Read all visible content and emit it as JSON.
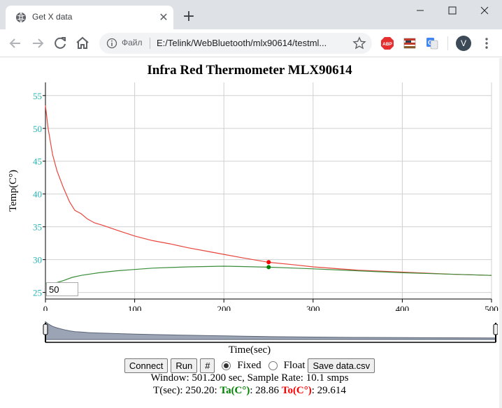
{
  "browser": {
    "tab_title": "Get X data",
    "close_tab_glyph": "✕",
    "new_tab_glyph": "+",
    "omnibox_label": "Файл",
    "url": "E:/Telink/WebBluetooth/mlx90614/testml...",
    "avatar_letter": "V",
    "extensions": [
      "abp-extension-icon",
      "flag-extension-icon",
      "translate-extension-icon"
    ]
  },
  "page": {
    "title": "Infra Red Thermometer MLX90614",
    "window_input_value": "50",
    "xlabel": "Time(sec)"
  },
  "controls": {
    "connect_label": "Connect",
    "run_label": "Run",
    "hash_label": "#",
    "fixed_label": "Fixed",
    "float_label": "Float",
    "save_label": "Save data.csv",
    "selected_mode": "Fixed"
  },
  "status": {
    "line1": "Window: 501.200 sec, Sample Rate: 10.1 smps",
    "t_text": "T(sec): 250.20: ",
    "ta_label": "Ta(C°)",
    "ta_value": ": 28.86 ",
    "to_label": "To(C°)",
    "to_value": ": 29.614"
  },
  "chart_data": {
    "type": "line",
    "ylabel": "Temp(C°)",
    "xlim": [
      0,
      500
    ],
    "ylim": [
      24,
      57
    ],
    "x_ticks": [
      0,
      100,
      200,
      300,
      400,
      500
    ],
    "y_ticks": [
      25,
      30,
      35,
      40,
      45,
      50,
      55
    ],
    "grid": true,
    "colors": {
      "to": "#e8453c",
      "ta": "#3a8c3a",
      "tick": "#26b3b3"
    },
    "series": [
      {
        "id": "to",
        "color": "#e8453c",
        "x": [
          0,
          3,
          8,
          13,
          20,
          27,
          33,
          40,
          47,
          55,
          65,
          80,
          100,
          120,
          140,
          160,
          180,
          200,
          220,
          250,
          280,
          300,
          350,
          400,
          450,
          500
        ],
        "y": [
          53.5,
          50,
          46,
          43.5,
          41,
          38.8,
          37.5,
          37,
          36.2,
          35.6,
          35.2,
          34.5,
          33.6,
          32.9,
          32.4,
          31.8,
          31.3,
          30.8,
          30.3,
          29.6,
          29.2,
          28.9,
          28.4,
          28.1,
          27.8,
          27.6
        ]
      },
      {
        "id": "ta",
        "color": "#3a8c3a",
        "x": [
          0,
          10,
          20,
          30,
          40,
          60,
          80,
          100,
          120,
          140,
          160,
          180,
          200,
          220,
          250,
          280,
          300,
          350,
          400,
          450,
          500
        ],
        "y": [
          26.3,
          26.4,
          26.8,
          27.3,
          27.6,
          28.0,
          28.3,
          28.5,
          28.7,
          28.8,
          28.9,
          28.95,
          29.0,
          28.95,
          28.85,
          28.7,
          28.6,
          28.3,
          28.0,
          27.8,
          27.6
        ]
      }
    ],
    "markers": [
      {
        "series": "to",
        "x": 250.2,
        "y": 29.614
      },
      {
        "series": "ta",
        "x": 250.2,
        "y": 28.86
      }
    ]
  },
  "brush": {
    "selection": [
      0,
      1
    ]
  }
}
